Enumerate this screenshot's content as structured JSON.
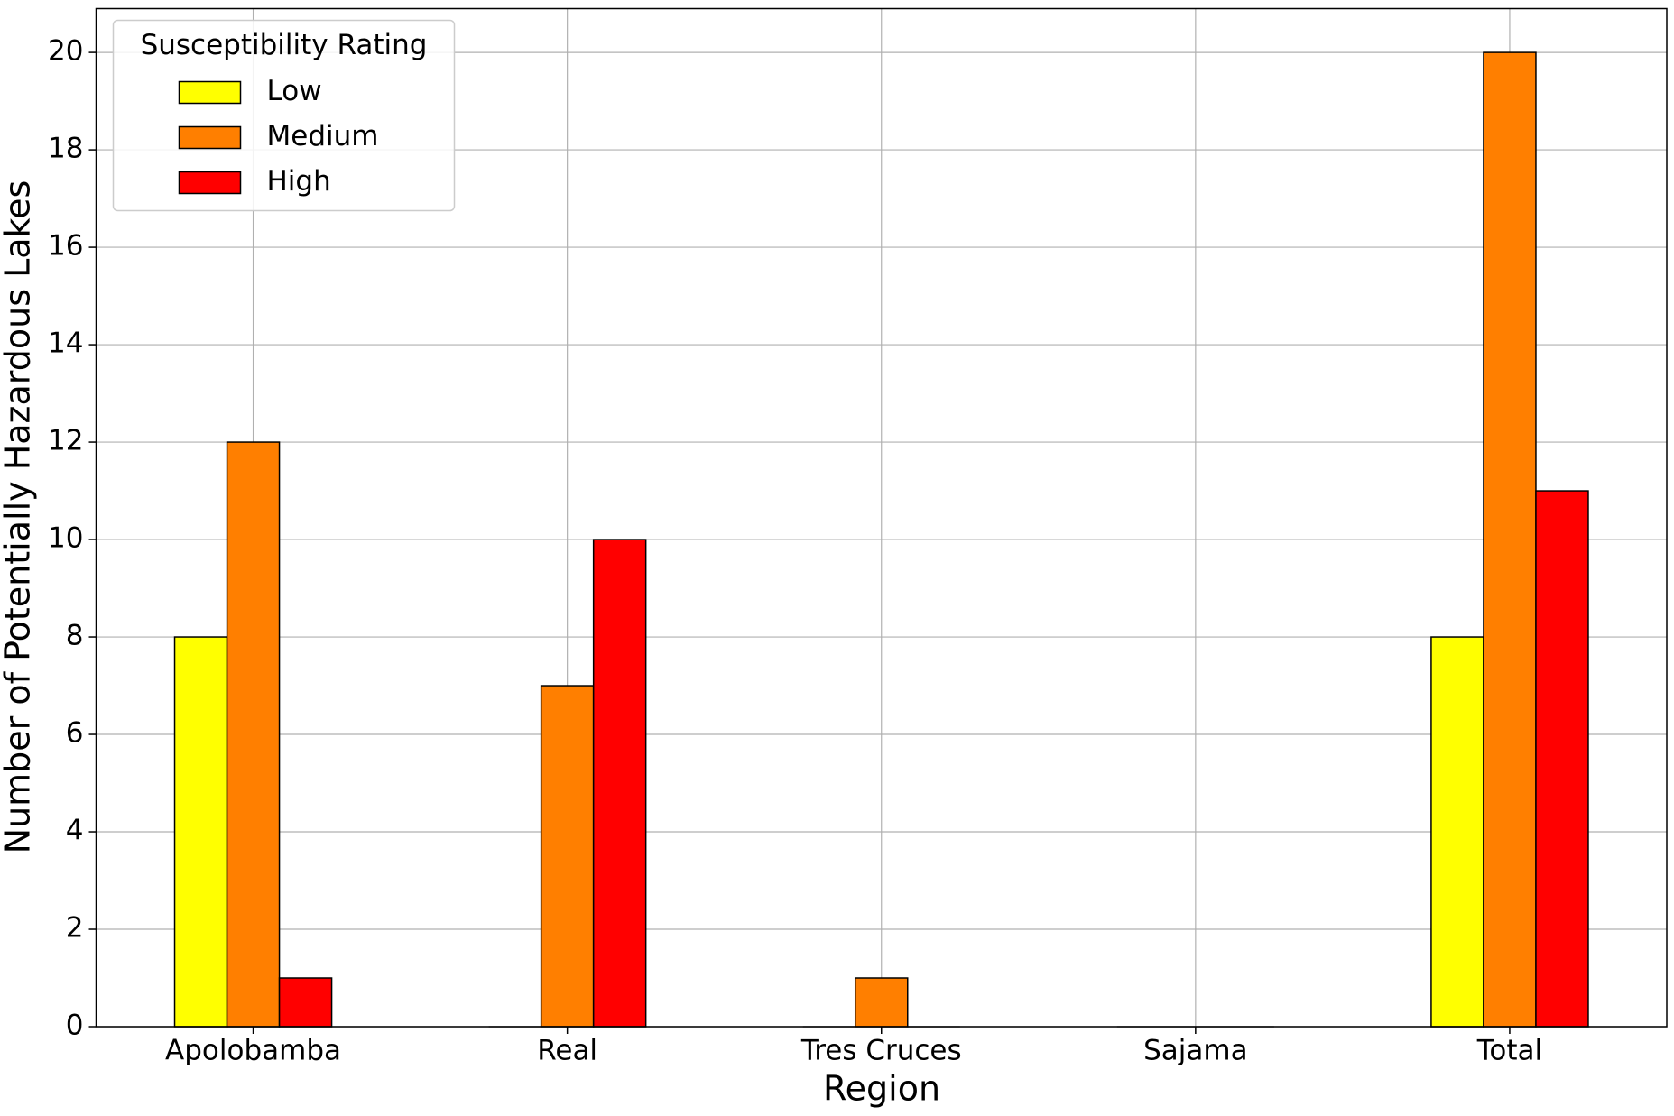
{
  "chart_data": {
    "type": "bar",
    "xlabel": "Region",
    "ylabel": "Number of Potentially Hazardous Lakes",
    "categories": [
      "Apolobamba",
      "Real",
      "Tres Cruces",
      "Sajama",
      "Total"
    ],
    "series": [
      {
        "name": "Low",
        "color": "#ffff00",
        "values": [
          8,
          0,
          0,
          0,
          8
        ]
      },
      {
        "name": "Medium",
        "color": "#ff7f00",
        "values": [
          12,
          7,
          1,
          0,
          20
        ]
      },
      {
        "name": "High",
        "color": "#ff0000",
        "values": [
          1,
          10,
          0,
          0,
          11
        ]
      }
    ],
    "ylim": [
      0,
      20.9
    ],
    "yticks": [
      0,
      2,
      4,
      6,
      8,
      10,
      12,
      14,
      16,
      18,
      20
    ],
    "grid": true,
    "legend": "upper left",
    "legend_title": "Susceptibility Rating"
  }
}
